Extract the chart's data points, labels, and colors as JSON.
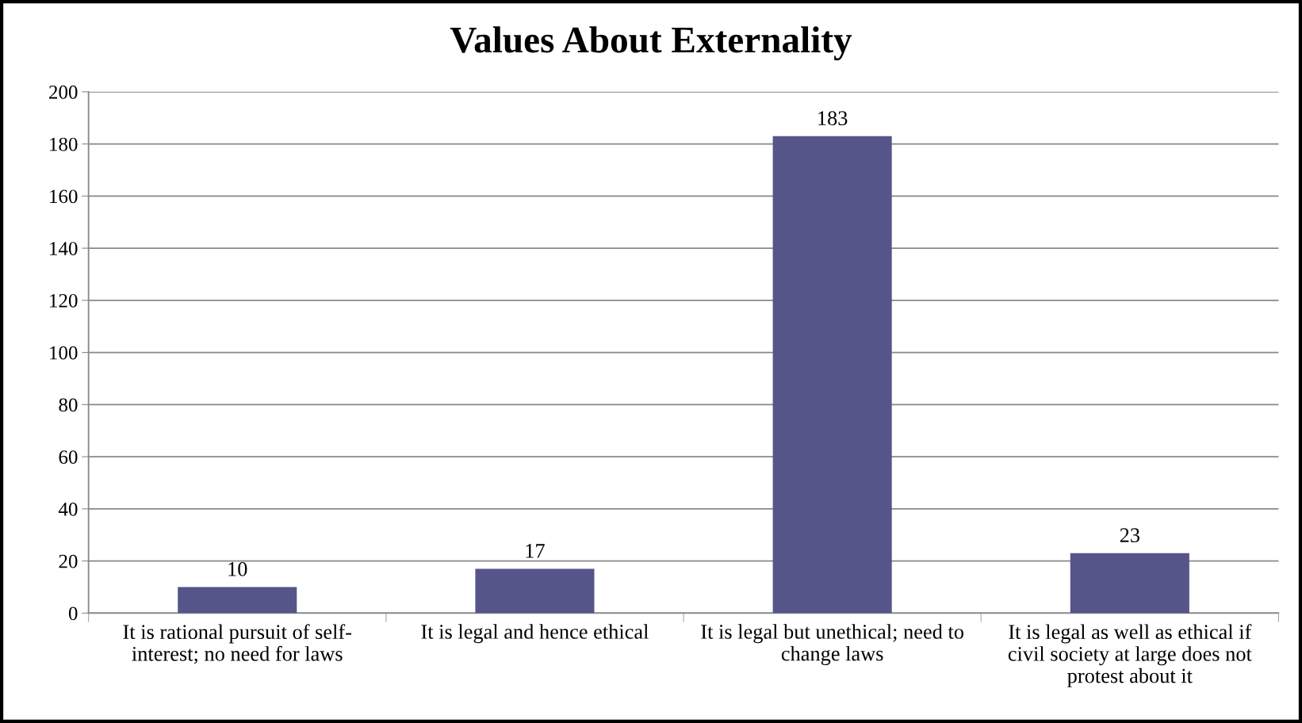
{
  "chart_data": {
    "type": "bar",
    "title": "Values About Externality",
    "categories": [
      "It is rational pursuit of self-\ninterest; no need for laws",
      "It is legal and hence ethical",
      "It is legal but unethical; need to\nchange laws",
      "It is legal as well as ethical if\ncivil society at large does not\nprotest about it"
    ],
    "values": [
      10,
      17,
      183,
      23
    ],
    "color": "#55558a",
    "ylim": [
      0,
      200
    ],
    "yticks": [
      0,
      20,
      40,
      60,
      80,
      100,
      120,
      140,
      160,
      180,
      200
    ],
    "grid": "y",
    "data_labels": true
  }
}
